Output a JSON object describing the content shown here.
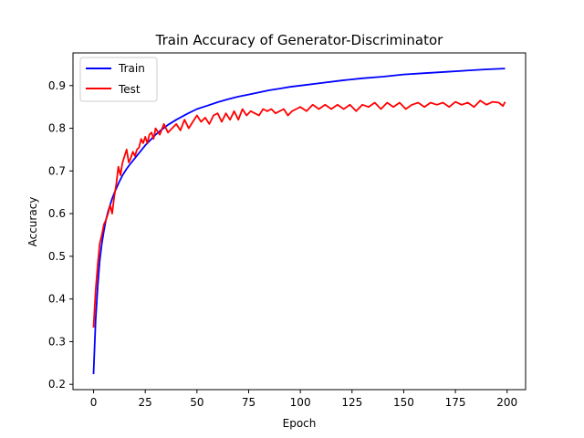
{
  "chart_data": {
    "type": "line",
    "title": "Train Accuracy of Generator-Discriminator",
    "xlabel": "Epoch",
    "ylabel": "Accuracy",
    "xlim": [
      -9.95,
      208.95
    ],
    "ylim": [
      0.1876,
      0.9765
    ],
    "x_ticks": [
      0,
      25,
      50,
      75,
      100,
      125,
      150,
      175,
      200
    ],
    "y_ticks": [
      0.2,
      0.3,
      0.4,
      0.5,
      0.6,
      0.7,
      0.8,
      0.9
    ],
    "grid": false,
    "legend_position": "top-left",
    "series": [
      {
        "name": "Train",
        "color": "#0000ff",
        "x": [
          0,
          1,
          2,
          3,
          4,
          5,
          6,
          7,
          8,
          9,
          10,
          12,
          14,
          16,
          18,
          20,
          22,
          25,
          28,
          30,
          33,
          36,
          40,
          45,
          50,
          55,
          60,
          65,
          70,
          75,
          80,
          85,
          90,
          95,
          100,
          110,
          120,
          130,
          140,
          150,
          160,
          170,
          180,
          190,
          199
        ],
        "values": [
          0.224,
          0.35,
          0.43,
          0.49,
          0.53,
          0.56,
          0.585,
          0.605,
          0.62,
          0.635,
          0.648,
          0.67,
          0.69,
          0.705,
          0.718,
          0.73,
          0.742,
          0.76,
          0.775,
          0.785,
          0.797,
          0.808,
          0.82,
          0.833,
          0.845,
          0.853,
          0.861,
          0.868,
          0.874,
          0.879,
          0.884,
          0.889,
          0.893,
          0.897,
          0.9,
          0.906,
          0.912,
          0.917,
          0.921,
          0.926,
          0.929,
          0.932,
          0.935,
          0.938,
          0.94
        ]
      },
      {
        "name": "Test",
        "color": "#ff0000",
        "x": [
          0,
          1,
          2,
          3,
          4,
          5,
          6,
          7,
          8,
          9,
          10,
          11,
          12,
          13,
          14,
          15,
          16,
          17,
          18,
          19,
          20,
          21,
          22,
          23,
          24,
          25,
          26,
          27,
          28,
          29,
          30,
          32,
          34,
          36,
          38,
          40,
          42,
          44,
          46,
          48,
          50,
          52,
          54,
          56,
          58,
          60,
          62,
          64,
          66,
          68,
          70,
          72,
          74,
          76,
          78,
          80,
          82,
          84,
          86,
          88,
          90,
          92,
          94,
          96,
          98,
          100,
          103,
          106,
          109,
          112,
          115,
          118,
          121,
          124,
          127,
          130,
          133,
          136,
          139,
          142,
          145,
          148,
          151,
          154,
          157,
          160,
          163,
          166,
          169,
          172,
          175,
          178,
          181,
          184,
          187,
          190,
          193,
          196,
          198,
          199
        ],
        "values": [
          0.333,
          0.42,
          0.48,
          0.53,
          0.55,
          0.575,
          0.585,
          0.6,
          0.62,
          0.6,
          0.64,
          0.67,
          0.71,
          0.69,
          0.72,
          0.735,
          0.75,
          0.72,
          0.73,
          0.745,
          0.735,
          0.75,
          0.755,
          0.775,
          0.765,
          0.78,
          0.765,
          0.785,
          0.79,
          0.775,
          0.8,
          0.785,
          0.81,
          0.79,
          0.8,
          0.81,
          0.795,
          0.82,
          0.8,
          0.815,
          0.83,
          0.815,
          0.825,
          0.81,
          0.83,
          0.835,
          0.815,
          0.835,
          0.82,
          0.84,
          0.82,
          0.845,
          0.83,
          0.84,
          0.835,
          0.83,
          0.845,
          0.84,
          0.845,
          0.835,
          0.84,
          0.845,
          0.83,
          0.84,
          0.845,
          0.85,
          0.84,
          0.855,
          0.845,
          0.855,
          0.845,
          0.855,
          0.845,
          0.855,
          0.84,
          0.855,
          0.85,
          0.86,
          0.845,
          0.86,
          0.85,
          0.86,
          0.845,
          0.855,
          0.86,
          0.85,
          0.86,
          0.855,
          0.86,
          0.85,
          0.862,
          0.855,
          0.86,
          0.85,
          0.865,
          0.855,
          0.862,
          0.86,
          0.852,
          0.862
        ]
      }
    ]
  }
}
